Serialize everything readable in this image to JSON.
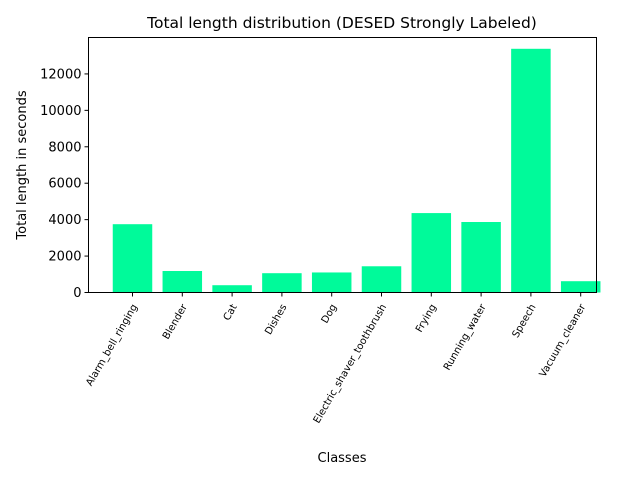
{
  "chart_data": {
    "type": "bar",
    "title": "Total length distribution (DESED Strongly Labeled)",
    "xlabel": "Classes",
    "ylabel": "Total length in seconds",
    "categories": [
      "Alarm_bell_ringing",
      "Blender",
      "Cat",
      "Dishes",
      "Dog",
      "Electric_shaver_toothbrush",
      "Frying",
      "Running_water",
      "Speech",
      "Vacuum_cleaner"
    ],
    "values": [
      3750,
      1180,
      400,
      1060,
      1100,
      1440,
      4360,
      3870,
      13380,
      620
    ],
    "ylim": [
      0,
      14000
    ],
    "yticks": [
      0,
      2000,
      4000,
      6000,
      8000,
      10000,
      12000
    ],
    "bar_color": "#00fa9a",
    "grid": false,
    "legend": "none"
  }
}
